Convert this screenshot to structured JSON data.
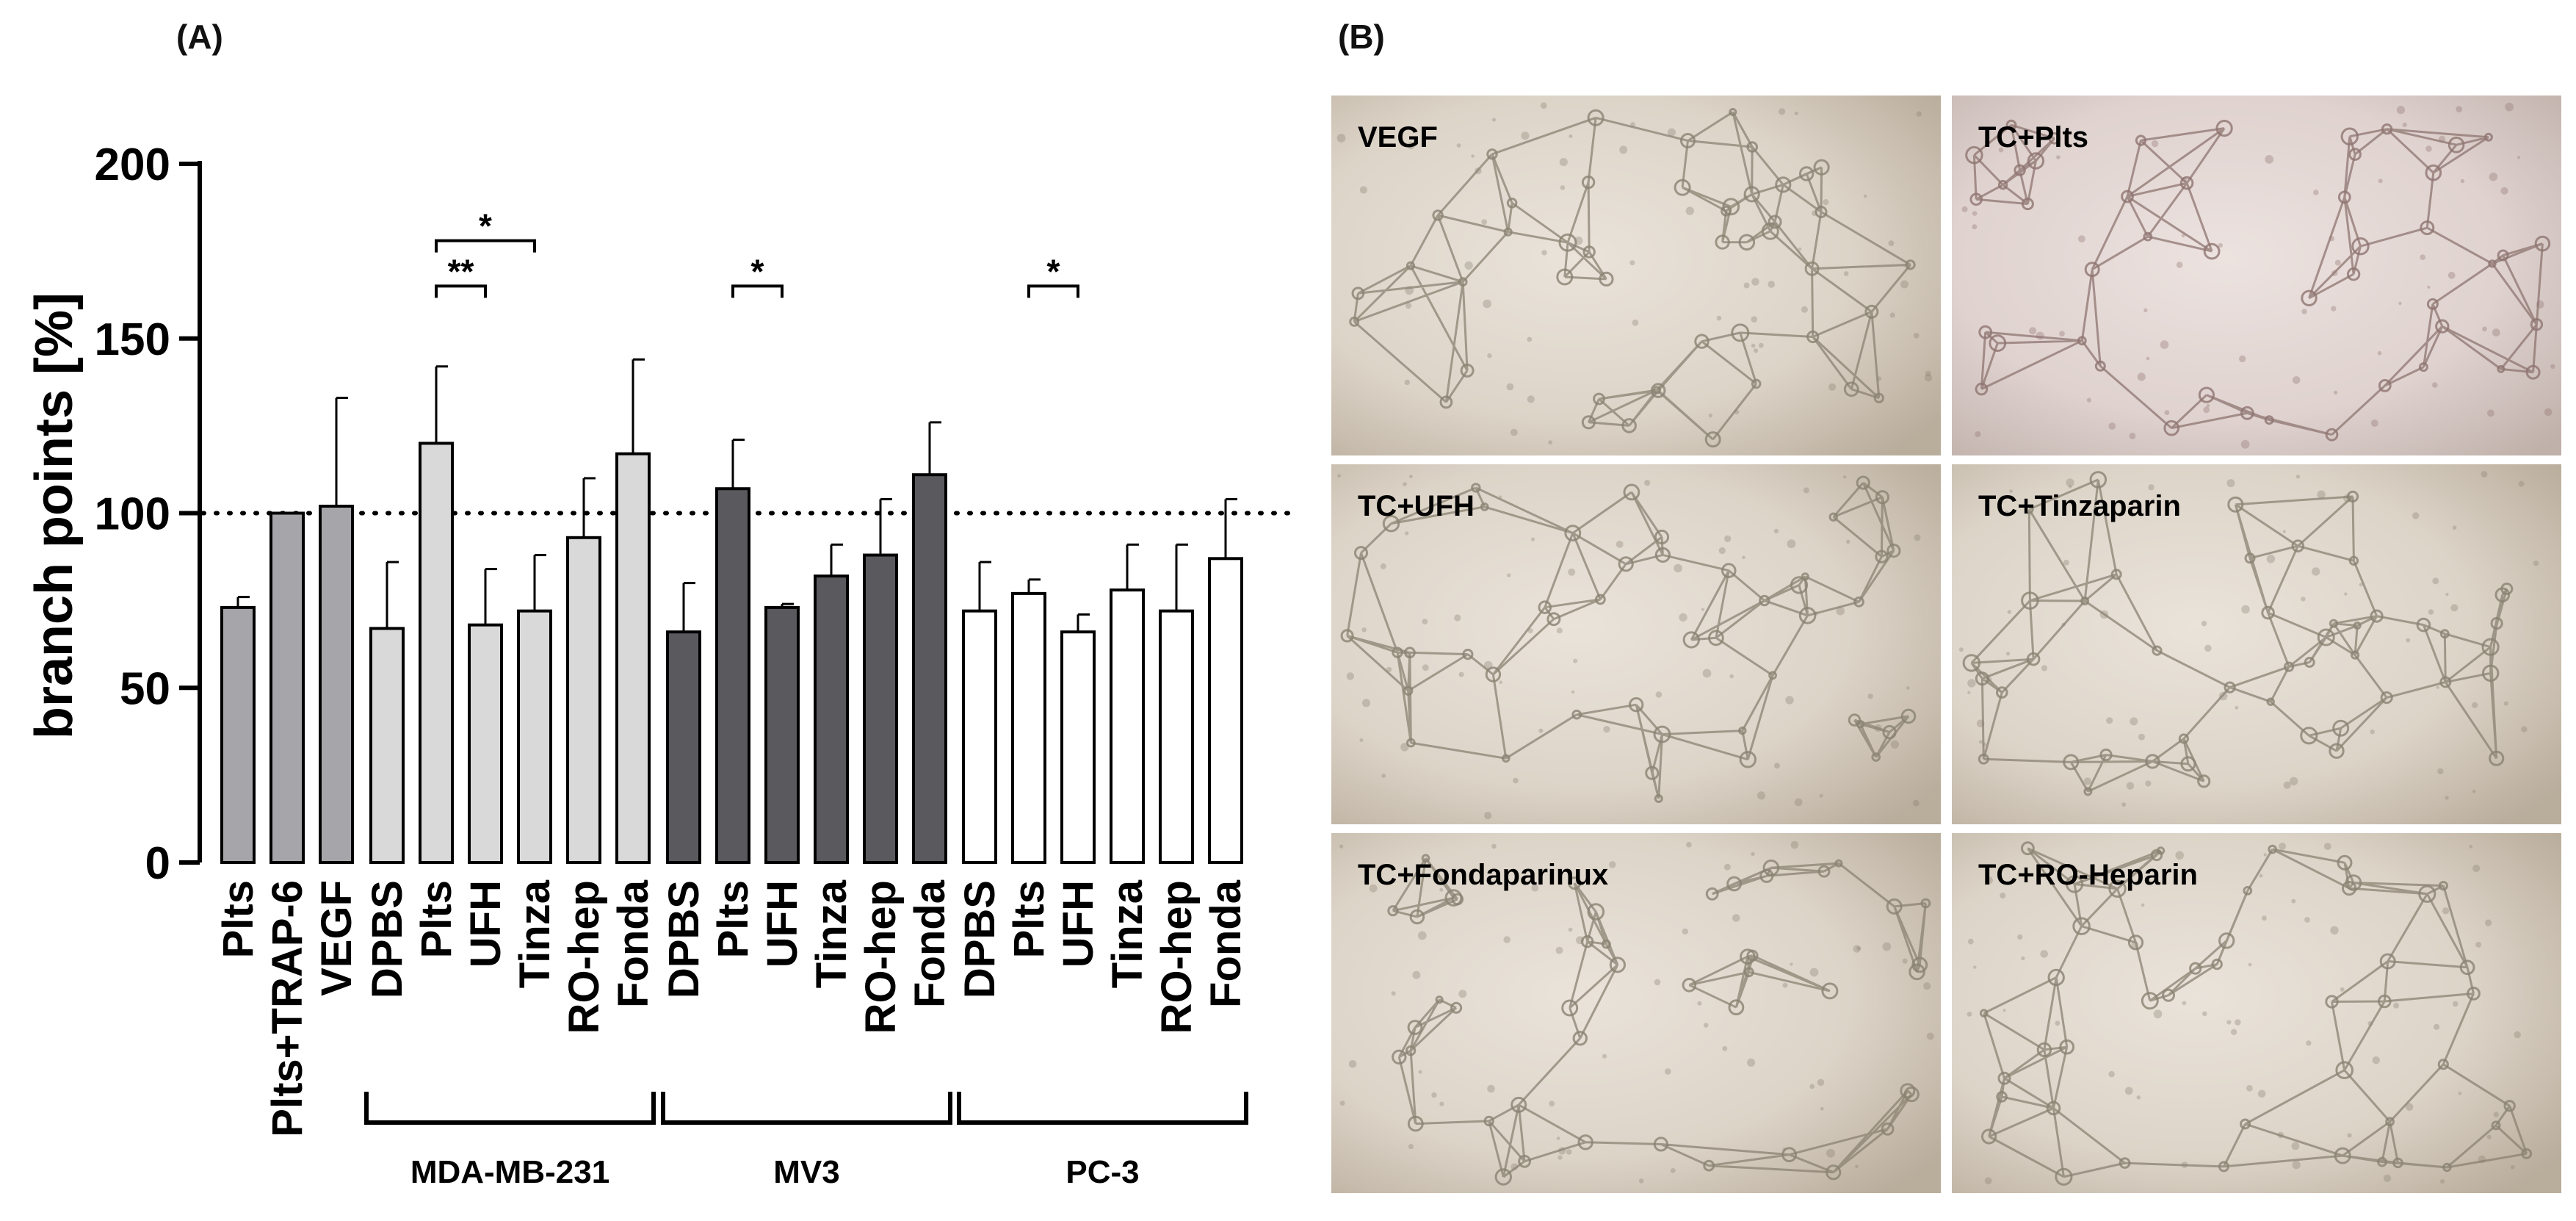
{
  "panel_a_label": "(A)",
  "panel_b_label": "(B)",
  "colors": {
    "control": "#a6a6aa",
    "MDA-MB-231": "#d9d9d9",
    "MV3": "#5a5a5e",
    "PC-3": "#ffffff",
    "stroke": "#000000"
  },
  "chart_data": {
    "type": "bar",
    "ylabel": "branch points [%]",
    "ylim": [
      0,
      200
    ],
    "yticks": [
      0,
      50,
      100,
      150,
      200
    ],
    "reference_line": 100,
    "error_bars": true,
    "groups": [
      {
        "label": "",
        "color_key": "control",
        "categories": [
          "Plts",
          "Plts+TRAP-6",
          "VEGF"
        ],
        "values": [
          73,
          100,
          102
        ],
        "errors": [
          3,
          0,
          31
        ]
      },
      {
        "label": "MDA-MB-231",
        "color_key": "MDA-MB-231",
        "categories": [
          "DPBS",
          "Plts",
          "UFH",
          "Tinza",
          "RO-hep",
          "Fonda"
        ],
        "values": [
          67,
          120,
          68,
          72,
          93,
          117
        ],
        "errors": [
          19,
          22,
          16,
          16,
          17,
          27
        ]
      },
      {
        "label": "MV3",
        "color_key": "MV3",
        "categories": [
          "DPBS",
          "Plts",
          "UFH",
          "Tinza",
          "RO-hep",
          "Fonda"
        ],
        "values": [
          66,
          107,
          73,
          82,
          88,
          111
        ],
        "errors": [
          14,
          14,
          1,
          9,
          16,
          15
        ]
      },
      {
        "label": "PC-3",
        "color_key": "PC-3",
        "categories": [
          "DPBS",
          "Plts",
          "UFH",
          "Tinza",
          "RO-hep",
          "Fonda"
        ],
        "values": [
          72,
          77,
          66,
          78,
          72,
          87
        ],
        "errors": [
          14,
          4,
          5,
          13,
          19,
          17
        ]
      }
    ],
    "significance": [
      {
        "group": 1,
        "from": 1,
        "to": 2,
        "y": 165,
        "label": "**"
      },
      {
        "group": 1,
        "from": 1,
        "to": 3,
        "y": 178,
        "label": "*"
      },
      {
        "group": 2,
        "from": 1,
        "to": 2,
        "y": 165,
        "label": "*"
      },
      {
        "group": 3,
        "from": 1,
        "to": 2,
        "y": 165,
        "label": "*"
      }
    ]
  },
  "micrographs": [
    {
      "label": "VEGF",
      "tint": "warm"
    },
    {
      "label": "TC+Plts",
      "tint": "pink"
    },
    {
      "label": "TC+UFH",
      "tint": "warm"
    },
    {
      "label": "TC+Tinzaparin",
      "tint": "warm"
    },
    {
      "label": "TC+Fondaparinux",
      "tint": "warm"
    },
    {
      "label": "TC+RO-Heparin",
      "tint": "warm"
    }
  ]
}
